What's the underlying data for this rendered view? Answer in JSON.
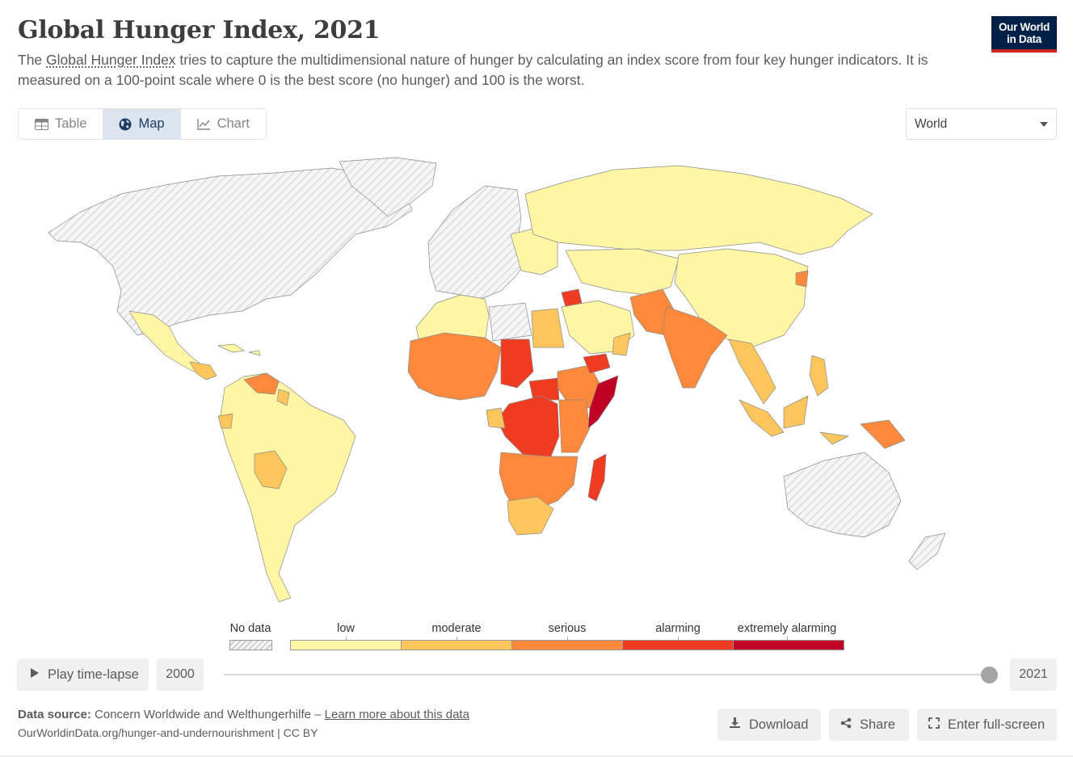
{
  "header": {
    "title": "Global Hunger Index, 2021",
    "subtitle_pre": "The ",
    "subtitle_link": "Global Hunger Index",
    "subtitle_post": " tries to capture the multidimensional nature of hunger by calculating an index score from four key hunger indicators. It is measured on a 100-point scale where 0 is the best score (no hunger) and 100 is the worst.",
    "logo_line1": "Our World",
    "logo_line2": "in Data"
  },
  "tabs": [
    {
      "label": "Table",
      "icon": "table-icon",
      "active": false
    },
    {
      "label": "Map",
      "icon": "globe-icon",
      "active": true
    },
    {
      "label": "Chart",
      "icon": "line-chart-icon",
      "active": false
    }
  ],
  "entity_selector": {
    "value": "World"
  },
  "colors": {
    "no_data": "#e9e9e9",
    "low": "#fff6a5",
    "moderate": "#fdc65c",
    "serious": "#fd8a3c",
    "alarming": "#ef3b22",
    "extremely_alarming": "#c00024"
  },
  "legend": {
    "no_data_label": "No data",
    "bins": [
      "low",
      "moderate",
      "serious",
      "alarming",
      "extremely alarming"
    ]
  },
  "timeline": {
    "play_label": "Play time-lapse",
    "start_year": "2000",
    "end_year": "2021",
    "position": 1.0
  },
  "footer": {
    "source_label": "Data source:",
    "source_text": " Concern Worldwide and Welthungerhilfe – ",
    "source_link": "Learn more about this data",
    "url": "OurWorldinData.org/hunger-and-undernourishment | CC BY",
    "download_label": "Download",
    "share_label": "Share",
    "fullscreen_label": "Enter full-screen"
  }
}
